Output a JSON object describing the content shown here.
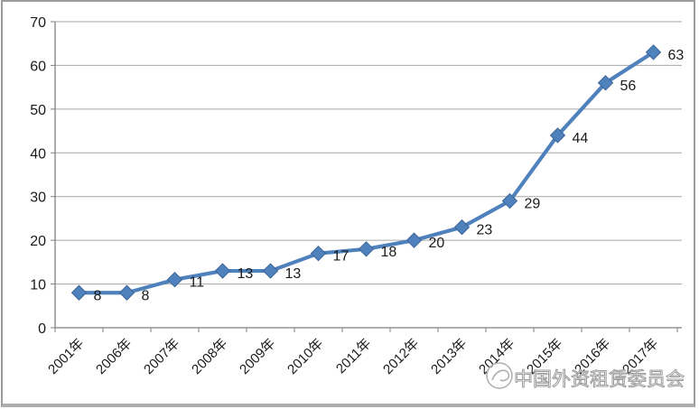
{
  "chart_data": {
    "type": "line",
    "title": "",
    "categories": [
      "2001年",
      "2006年",
      "2007年",
      "2008年",
      "2009年",
      "2010年",
      "2011年",
      "2012年",
      "2013年",
      "2014年",
      "2015年",
      "2016年",
      "2017年"
    ],
    "series": [
      {
        "name": "",
        "values": [
          8,
          8,
          11,
          13,
          13,
          17,
          18,
          20,
          23,
          29,
          44,
          56,
          63
        ],
        "color": "#4F81BD",
        "marker": "diamond",
        "marker_edge_color": "#3B6598",
        "data_labels": true
      }
    ],
    "xlabel": "",
    "ylabel": "",
    "ylim": [
      0,
      70
    ],
    "yticks": [
      0,
      10,
      20,
      30,
      40,
      50,
      60,
      70
    ],
    "grid": true,
    "legend_position": "none",
    "x_tick_rotation_deg": 45,
    "colors": {
      "gridline": "#A6A6A6",
      "axis": "#808080",
      "tick_label": "#1a1a1a",
      "background": "#FFFFFF"
    }
  },
  "watermark": {
    "text": "中国外资租赁委员会",
    "logo_icon": "circular-emblem-icon",
    "color": "#9A9A9A"
  }
}
